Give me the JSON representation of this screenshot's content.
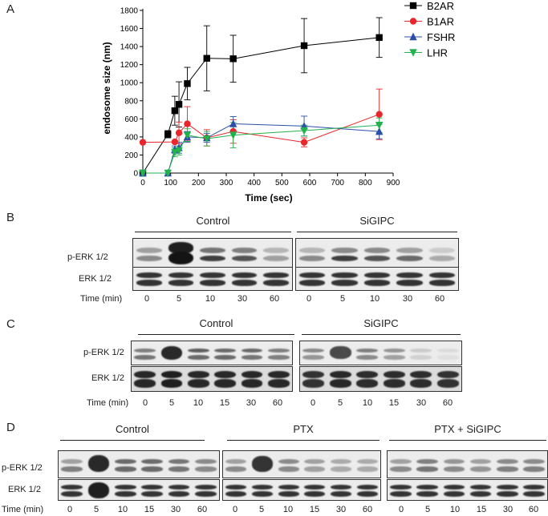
{
  "panels": {
    "A": "A",
    "B": "B",
    "C": "C",
    "D": "D"
  },
  "chart_data": {
    "type": "line",
    "xlabel": "Time (sec)",
    "ylabel": "endosome size (nm)",
    "xlim": [
      0,
      900
    ],
    "ylim": [
      0,
      1800
    ],
    "xticks": [
      0,
      100,
      200,
      300,
      400,
      500,
      600,
      700,
      800,
      900
    ],
    "yticks": [
      0,
      200,
      400,
      600,
      800,
      1000,
      1200,
      1400,
      1600,
      1800
    ],
    "grid": false,
    "legend_position": "top-right",
    "series": [
      {
        "name": "B2AR",
        "color": "#000000",
        "marker": "square",
        "x": [
          0,
          90,
          115,
          130,
          160,
          230,
          325,
          580,
          850
        ],
        "y": [
          0,
          430,
          690,
          760,
          990,
          1270,
          1265,
          1410,
          1500
        ],
        "err": [
          0,
          40,
          160,
          250,
          180,
          360,
          260,
          300,
          220
        ]
      },
      {
        "name": "B1AR",
        "color": "#e8262b",
        "marker": "circle",
        "x": [
          0,
          115,
          130,
          160,
          230,
          325,
          580,
          850
        ],
        "y": [
          340,
          345,
          445,
          545,
          390,
          460,
          340,
          650
        ],
        "err": [
          0,
          0,
          120,
          190,
          90,
          130,
          50,
          280
        ]
      },
      {
        "name": "FSHR",
        "color": "#2b4fa8",
        "marker": "triangle-up",
        "x": [
          0,
          90,
          115,
          130,
          160,
          230,
          325,
          580,
          850
        ],
        "y": [
          0,
          0,
          260,
          280,
          400,
          390,
          545,
          520,
          460
        ],
        "err": [
          0,
          0,
          40,
          60,
          60,
          50,
          80,
          110,
          80
        ]
      },
      {
        "name": "LHR",
        "color": "#22b24c",
        "marker": "triangle-down",
        "x": [
          0,
          90,
          115,
          130,
          160,
          230,
          325,
          580,
          850
        ],
        "y": [
          0,
          0,
          230,
          250,
          420,
          380,
          420,
          470,
          530
        ],
        "err": [
          0,
          0,
          50,
          50,
          70,
          80,
          140,
          60,
          80
        ]
      }
    ]
  },
  "blotB": {
    "groups": [
      "Control",
      "SiGIPC"
    ],
    "rows": [
      "p-ERK 1/2",
      "ERK 1/2"
    ],
    "time_label": "Time (min)",
    "times": [
      "0",
      "5",
      "10",
      "30",
      "60",
      "0",
      "5",
      "10",
      "30",
      "60"
    ]
  },
  "blotC": {
    "groups": [
      "Control",
      "SiGIPC"
    ],
    "rows": [
      "p-ERK 1/2",
      "ERK 1/2"
    ],
    "time_label": "Time (min)",
    "times": [
      "0",
      "5",
      "10",
      "15",
      "30",
      "60",
      "0",
      "5",
      "10",
      "15",
      "30",
      "60"
    ]
  },
  "blotD": {
    "groups": [
      "Control",
      "PTX",
      "PTX + SiGIPC"
    ],
    "rows": [
      "p-ERK 1/2",
      "ERK 1/2"
    ],
    "time_label": "Time (min)",
    "times": [
      "0",
      "5",
      "10",
      "15",
      "30",
      "60",
      "0",
      "5",
      "10",
      "15",
      "30",
      "60",
      "0",
      "5",
      "10",
      "15",
      "30",
      "60"
    ]
  }
}
